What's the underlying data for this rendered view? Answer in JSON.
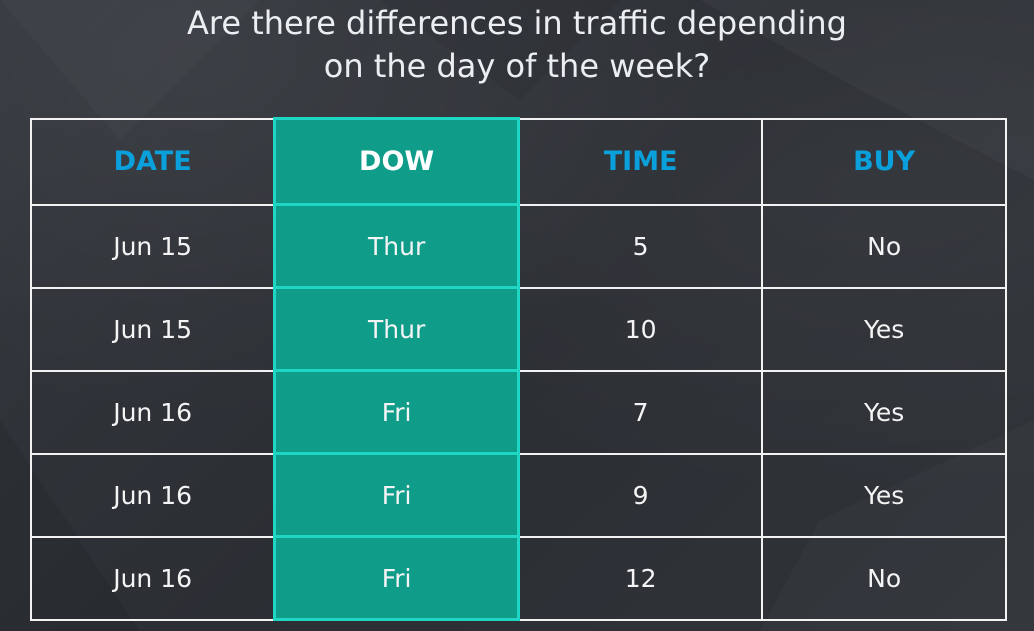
{
  "title": {
    "line1": "Are there differences in traffic depending",
    "line2": "on the day of the week?"
  },
  "table": {
    "headers": [
      "DATE",
      "DOW",
      "TIME",
      "BUY"
    ],
    "rows": [
      [
        "Jun 15",
        "Thur",
        "5",
        "No"
      ],
      [
        "Jun 15",
        "Thur",
        "10",
        "Yes"
      ],
      [
        "Jun 16",
        "Fri",
        "7",
        "Yes"
      ],
      [
        "Jun 16",
        "Fri",
        "9",
        "Yes"
      ],
      [
        "Jun 16",
        "Fri",
        "12",
        "No"
      ]
    ]
  },
  "colors": {
    "header_text": "#0aa0dc",
    "highlight_fill": "#0f9d8a",
    "highlight_border": "#1fd6c4",
    "background": "#2e3136"
  }
}
